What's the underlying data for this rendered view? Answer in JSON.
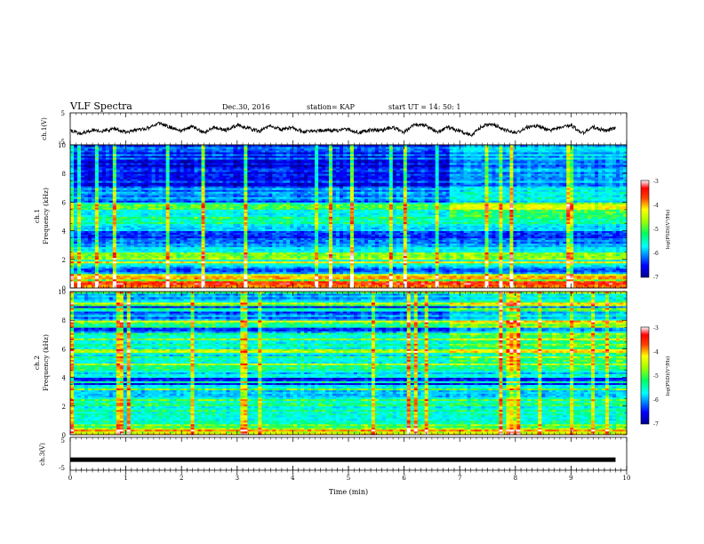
{
  "header": {
    "title": "VLF Spectra",
    "date": "Dec.30, 2016",
    "station": "station= KAP",
    "start": "start  UT =   14: 50: 1"
  },
  "chart_data": [
    {
      "type": "line",
      "panel": "ch1-waveform",
      "ylabel": "ch.1(V)",
      "ylim": [
        -5,
        5
      ],
      "yticks": [
        "5",
        "-5"
      ],
      "xlim": [
        0,
        10
      ],
      "note_values": "approximate waveform samples, volts vs minutes",
      "x": [
        0,
        0.2,
        0.4,
        0.6,
        0.8,
        1.0,
        1.2,
        1.4,
        1.6,
        1.8,
        2.0,
        2.2,
        2.4,
        2.6,
        2.8,
        3.0,
        3.2,
        3.4,
        3.6,
        3.8,
        4.0,
        4.2,
        4.4,
        4.6,
        4.8,
        5.0,
        5.2,
        5.4,
        5.6,
        5.8,
        6.0,
        6.2,
        6.4,
        6.6,
        6.8,
        7.0,
        7.2,
        7.4,
        7.6,
        7.8,
        8.0,
        8.2,
        8.4,
        8.6,
        8.8,
        9.0,
        9.2,
        9.4,
        9.6,
        9.8
      ],
      "y": [
        -0.5,
        -1.5,
        -0.3,
        -0.8,
        0.2,
        -1.0,
        -0.4,
        0.3,
        1.8,
        0.5,
        -0.6,
        0.8,
        -1.2,
        0.6,
        -0.4,
        1.2,
        0.3,
        -0.8,
        1.0,
        -0.2,
        0.4,
        -1.0,
        -0.6,
        -0.4,
        -0.5,
        -0.2,
        -1.2,
        -0.3,
        -0.4,
        0.6,
        -1.0,
        1.4,
        0.9,
        -1.0,
        0.5,
        -0.8,
        -2.0,
        0.8,
        1.6,
        -0.2,
        -1.4,
        0.4,
        1.0,
        -0.6,
        0.3,
        1.2,
        -1.4,
        0.6,
        -0.6,
        0.2
      ]
    },
    {
      "type": "heatmap",
      "panel": "ch1-spectrogram",
      "title": "ch.1",
      "ylabel": "Frequency (kHz)",
      "ylim": [
        0,
        10
      ],
      "yticks": [
        "0",
        "2",
        "4",
        "6",
        "8",
        "10"
      ],
      "xlim": [
        0,
        10
      ],
      "colorbar": {
        "label": "log(PSD)(V²/Hz)",
        "range": [
          -7,
          -3
        ],
        "ticks": [
          "-3",
          "-4",
          "-5",
          "-6",
          "-7"
        ]
      },
      "freq_kHz": [
        0.25,
        0.75,
        1.25,
        1.75,
        2.25,
        2.75,
        3.25,
        3.75,
        4.25,
        4.75,
        5.25,
        5.75,
        6.25,
        6.75,
        7.25,
        7.75,
        8.25,
        8.75,
        9.25,
        9.75
      ],
      "band_log_psd": [
        -3.6,
        -4.6,
        -6.0,
        -5.4,
        -4.9,
        -5.7,
        -6.1,
        -6.3,
        -5.5,
        -5.1,
        -5.4,
        -5.1,
        -6.1,
        -6.0,
        -6.4,
        -6.6,
        -6.5,
        -6.6,
        -6.3,
        -6.2
      ]
    },
    {
      "type": "heatmap",
      "panel": "ch2-spectrogram",
      "title": "ch.2",
      "ylabel": "Frequency (kHz)",
      "ylim": [
        0,
        10
      ],
      "yticks": [
        "0",
        "2",
        "4",
        "6",
        "8",
        "10"
      ],
      "xlim": [
        0,
        10
      ],
      "colorbar": {
        "label": "log(PSD)(V²/Hz)",
        "range": [
          -7,
          -3
        ],
        "ticks": [
          "-3",
          "-4",
          "-5",
          "-6",
          "-7"
        ]
      },
      "freq_kHz": [
        0.25,
        0.75,
        1.25,
        1.75,
        2.25,
        2.75,
        3.25,
        3.75,
        4.25,
        4.75,
        5.25,
        5.75,
        6.25,
        6.75,
        7.25,
        7.75,
        8.25,
        8.75,
        9.25,
        9.75
      ],
      "band_log_psd": [
        -4.6,
        -5.0,
        -5.5,
        -5.4,
        -5.2,
        -5.6,
        -5.8,
        -6.4,
        -5.6,
        -5.4,
        -5.3,
        -5.6,
        -5.4,
        -5.6,
        -6.2,
        -5.1,
        -6.0,
        -6.2,
        -5.6,
        -5.9
      ]
    },
    {
      "type": "line",
      "panel": "ch3-waveform",
      "ylabel": "ch.3(V)",
      "ylim": [
        -5,
        5
      ],
      "yticks": [
        "5",
        "-5"
      ],
      "xlim": [
        0,
        10
      ],
      "x": [
        0,
        9.8
      ],
      "y": [
        -1.8,
        -1.8
      ]
    }
  ],
  "xaxis": {
    "label": "Time  (min)",
    "ticks": [
      "0",
      "1",
      "2",
      "3",
      "4",
      "5",
      "6",
      "7",
      "8",
      "9",
      "10"
    ]
  },
  "colormap": [
    "#00008f",
    "#0000ff",
    "#00bfff",
    "#00ffff",
    "#00ff7f",
    "#7fff00",
    "#ffff00",
    "#ff8000",
    "#ff0000",
    "#c00000",
    "#ffffff"
  ]
}
